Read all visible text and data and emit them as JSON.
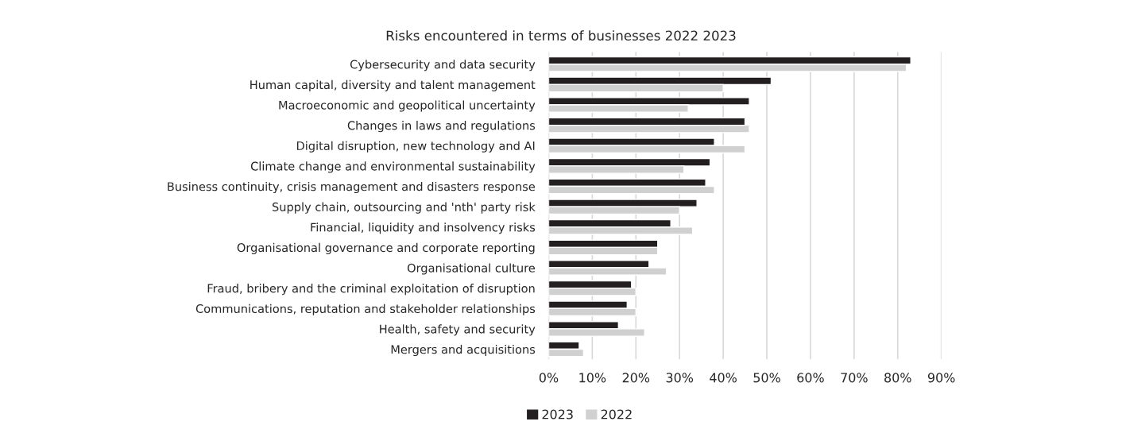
{
  "chart_data": {
    "type": "bar",
    "orientation": "horizontal",
    "title": "Risks encountered in terms of businesses 2022 2023",
    "categories": [
      "Cybersecurity and data security",
      "Human capital, diversity and talent management",
      "Macroeconomic and geopolitical uncertainty",
      "Changes in laws and regulations",
      "Digital disruption, new technology and AI",
      "Climate change and environmental sustainability",
      "Business continuity, crisis management and disasters response",
      "Supply chain, outsourcing and 'nth' party risk",
      "Financial, liquidity and insolvency risks",
      "Organisational governance and corporate reporting",
      "Organisational culture",
      "Fraud, bribery and the criminal exploitation of disruption",
      "Communications, reputation and stakeholder relationships",
      "Health, safety and security",
      "Mergers and acquisitions"
    ],
    "series": [
      {
        "name": "2023",
        "color": "#231f20",
        "values": [
          83,
          51,
          46,
          45,
          38,
          37,
          36,
          34,
          28,
          25,
          23,
          19,
          18,
          16,
          7
        ]
      },
      {
        "name": "2022",
        "color": "#d0d0d0",
        "values": [
          82,
          40,
          32,
          46,
          45,
          31,
          38,
          30,
          33,
          25,
          27,
          20,
          20,
          22,
          8
        ]
      }
    ],
    "xlim": [
      0,
      90
    ],
    "xticks": [
      {
        "value": 0,
        "label": "0%"
      },
      {
        "value": 10,
        "label": "10%"
      },
      {
        "value": 20,
        "label": "20%"
      },
      {
        "value": 30,
        "label": "30%"
      },
      {
        "value": 40,
        "label": "40%"
      },
      {
        "value": 50,
        "label": "50%"
      },
      {
        "value": 60,
        "label": "60%"
      },
      {
        "value": 70,
        "label": "70%"
      },
      {
        "value": 80,
        "label": "80%"
      },
      {
        "value": 90,
        "label": "90%"
      }
    ],
    "grid": "x",
    "legend": "bottom"
  }
}
